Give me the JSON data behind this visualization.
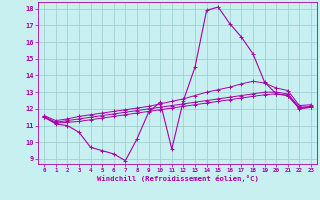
{
  "xlabel": "Windchill (Refroidissement éolien,°C)",
  "background_color": "#c8f0f0",
  "line_color": "#aa00aa",
  "grid_color": "#99cccc",
  "xlim": [
    -0.5,
    23.5
  ],
  "ylim": [
    8.7,
    18.4
  ],
  "yticks": [
    9,
    10,
    11,
    12,
    13,
    14,
    15,
    16,
    17,
    18
  ],
  "xticks": [
    0,
    1,
    2,
    3,
    4,
    5,
    6,
    7,
    8,
    9,
    10,
    11,
    12,
    13,
    14,
    15,
    16,
    17,
    18,
    19,
    20,
    21,
    22,
    23
  ],
  "main_line_x": [
    0,
    1,
    2,
    3,
    4,
    5,
    6,
    7,
    8,
    9,
    10,
    11,
    12,
    13,
    14,
    15,
    16,
    17,
    18,
    19,
    20,
    21,
    22,
    23
  ],
  "main_line_y": [
    11.5,
    11.1,
    11.0,
    10.6,
    9.7,
    9.5,
    9.3,
    8.9,
    10.2,
    11.8,
    12.4,
    9.6,
    12.5,
    14.5,
    17.9,
    18.1,
    17.1,
    16.3,
    15.3,
    13.6,
    12.9,
    12.8,
    12.0,
    12.1
  ],
  "line2_x": [
    0,
    1,
    2,
    3,
    4,
    5,
    6,
    7,
    8,
    9,
    10,
    11,
    12,
    13,
    14,
    15,
    16,
    17,
    18,
    19,
    20,
    21,
    22,
    23
  ],
  "line2_y": [
    11.5,
    11.15,
    11.2,
    11.25,
    11.35,
    11.45,
    11.55,
    11.65,
    11.75,
    11.85,
    11.95,
    12.05,
    12.15,
    12.25,
    12.35,
    12.45,
    12.55,
    12.65,
    12.75,
    12.85,
    12.9,
    12.8,
    12.05,
    12.1
  ],
  "line3_x": [
    0,
    1,
    2,
    3,
    4,
    5,
    6,
    7,
    8,
    9,
    10,
    11,
    12,
    13,
    14,
    15,
    16,
    17,
    18,
    19,
    20,
    21,
    22,
    23
  ],
  "line3_y": [
    11.55,
    11.2,
    11.3,
    11.4,
    11.5,
    11.6,
    11.7,
    11.8,
    11.9,
    12.0,
    12.1,
    12.2,
    12.3,
    12.4,
    12.5,
    12.6,
    12.7,
    12.8,
    12.9,
    13.0,
    13.0,
    12.9,
    12.1,
    12.15
  ],
  "line4_x": [
    0,
    1,
    2,
    3,
    4,
    5,
    6,
    7,
    8,
    9,
    10,
    11,
    12,
    13,
    14,
    15,
    16,
    17,
    18,
    19,
    20,
    21,
    22,
    23
  ],
  "line4_y": [
    11.6,
    11.3,
    11.4,
    11.55,
    11.65,
    11.75,
    11.85,
    11.95,
    12.05,
    12.15,
    12.3,
    12.45,
    12.6,
    12.8,
    13.0,
    13.15,
    13.3,
    13.5,
    13.65,
    13.55,
    13.25,
    13.1,
    12.2,
    12.25
  ]
}
